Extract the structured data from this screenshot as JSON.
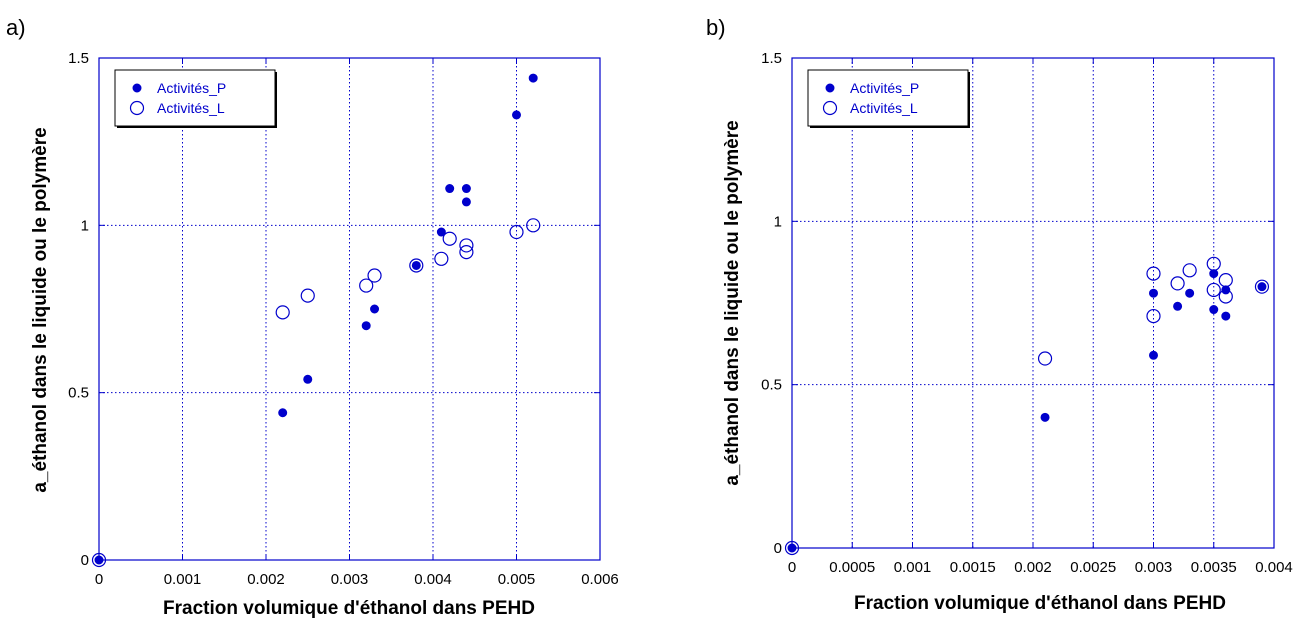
{
  "panels": [
    {
      "label": "a)",
      "chart_data": {
        "type": "scatter",
        "xlabel": "Fraction volumique d'éthanol dans PEHD",
        "ylabel": "a_éthanol dans le liquide ou le polymère",
        "xlim": [
          0,
          0.006
        ],
        "ylim": [
          0,
          1.5
        ],
        "x_ticks": [
          0,
          0.001,
          0.002,
          0.003,
          0.004,
          0.005,
          0.006
        ],
        "x_tick_labels": [
          "0",
          "0.001",
          "0.002",
          "0.003",
          "0.004",
          "0.005",
          "0.006"
        ],
        "y_ticks": [
          0,
          0.5,
          1,
          1.5
        ],
        "y_tick_labels": [
          "0",
          "0.5",
          "1",
          "1.5"
        ],
        "grid": true,
        "legend_position": "top-left",
        "series": [
          {
            "name": "Activités_P",
            "marker": "filled-circle",
            "color": "#0000cc",
            "points": [
              [
                0,
                0
              ],
              [
                0.0022,
                0.44
              ],
              [
                0.0025,
                0.54
              ],
              [
                0.0032,
                0.7
              ],
              [
                0.0033,
                0.75
              ],
              [
                0.0038,
                0.88
              ],
              [
                0.0041,
                0.98
              ],
              [
                0.0042,
                1.11
              ],
              [
                0.0044,
                1.11
              ],
              [
                0.0044,
                1.07
              ],
              [
                0.005,
                1.33
              ],
              [
                0.0052,
                1.44
              ]
            ]
          },
          {
            "name": "Activités_L",
            "marker": "open-circle",
            "color": "#0000cc",
            "points": [
              [
                0,
                0
              ],
              [
                0.0022,
                0.74
              ],
              [
                0.0025,
                0.79
              ],
              [
                0.0032,
                0.82
              ],
              [
                0.0033,
                0.85
              ],
              [
                0.0038,
                0.88
              ],
              [
                0.0041,
                0.9
              ],
              [
                0.0042,
                0.96
              ],
              [
                0.0044,
                0.94
              ],
              [
                0.0044,
                0.92
              ],
              [
                0.005,
                0.98
              ],
              [
                0.0052,
                1.0
              ]
            ]
          }
        ]
      }
    },
    {
      "label": "b)",
      "chart_data": {
        "type": "scatter",
        "xlabel": "Fraction volumique d'éthanol dans PEHD",
        "ylabel": "a_éthanol dans le liquide ou le polymère",
        "xlim": [
          0,
          0.004
        ],
        "ylim": [
          0,
          1.5
        ],
        "x_ticks": [
          0,
          0.0005,
          0.001,
          0.0015,
          0.002,
          0.0025,
          0.003,
          0.0035,
          0.004
        ],
        "x_tick_labels": [
          "0",
          "0.0005",
          "0.001",
          "0.0015",
          "0.002",
          "0.0025",
          "0.003",
          "0.0035",
          "0.004"
        ],
        "y_ticks": [
          0,
          0.5,
          1,
          1.5
        ],
        "y_tick_labels": [
          "0",
          "0.5",
          "1",
          "1.5"
        ],
        "grid": true,
        "legend_position": "top-left",
        "series": [
          {
            "name": "Activités_P",
            "marker": "filled-circle",
            "color": "#0000cc",
            "points": [
              [
                0,
                0
              ],
              [
                0.0021,
                0.4
              ],
              [
                0.003,
                0.59
              ],
              [
                0.003,
                0.78
              ],
              [
                0.0032,
                0.74
              ],
              [
                0.0033,
                0.78
              ],
              [
                0.0035,
                0.84
              ],
              [
                0.0035,
                0.73
              ],
              [
                0.0036,
                0.79
              ],
              [
                0.0036,
                0.71
              ],
              [
                0.0039,
                0.8
              ]
            ]
          },
          {
            "name": "Activités_L",
            "marker": "open-circle",
            "color": "#0000cc",
            "points": [
              [
                0,
                0
              ],
              [
                0.0021,
                0.58
              ],
              [
                0.003,
                0.84
              ],
              [
                0.003,
                0.71
              ],
              [
                0.0032,
                0.81
              ],
              [
                0.0033,
                0.85
              ],
              [
                0.0035,
                0.87
              ],
              [
                0.0035,
                0.79
              ],
              [
                0.0036,
                0.82
              ],
              [
                0.0036,
                0.77
              ],
              [
                0.0039,
                0.8
              ]
            ]
          }
        ]
      }
    }
  ]
}
